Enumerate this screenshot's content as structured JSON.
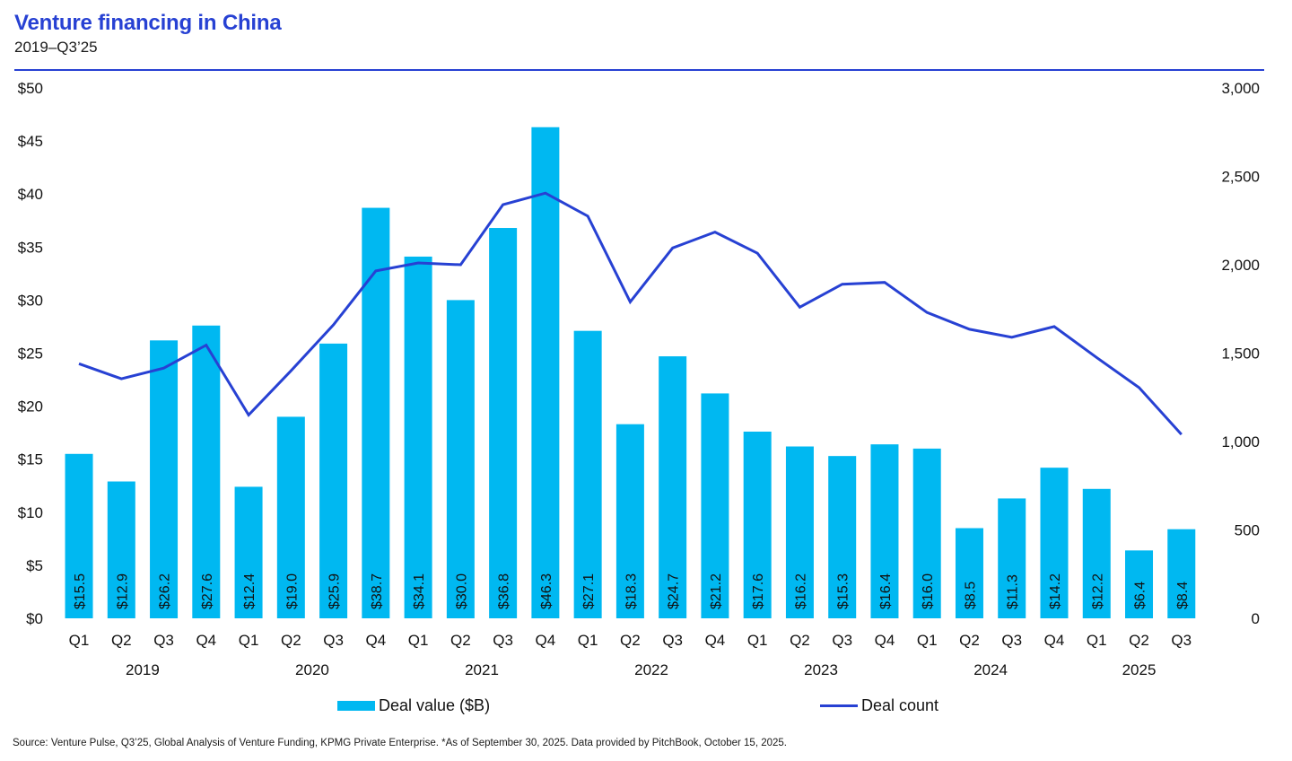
{
  "header": {
    "title": "Venture financing in China",
    "subtitle": "2019–Q3’25"
  },
  "legend": {
    "bar_label": "Deal value ($B)",
    "line_label": "Deal count"
  },
  "source": "Source: Venture Pulse, Q3’25, Global Analysis of Venture Funding, KPMG Private Enterprise. *As of September 30, 2025. Data provided by PitchBook, October 15, 2025.",
  "colors": {
    "bar": "#00b8f1",
    "line": "#2741d3",
    "title": "#2741d3"
  },
  "chart_data": {
    "type": "bar+line",
    "title": "Venture financing in China",
    "subtitle": "2019–Q3’25",
    "categories": [
      "Q1",
      "Q2",
      "Q3",
      "Q4",
      "Q1",
      "Q2",
      "Q3",
      "Q4",
      "Q1",
      "Q2",
      "Q3",
      "Q4",
      "Q1",
      "Q2",
      "Q3",
      "Q4",
      "Q1",
      "Q2",
      "Q3",
      "Q4",
      "Q1",
      "Q2",
      "Q3",
      "Q4",
      "Q1",
      "Q2",
      "Q3"
    ],
    "year_groups": [
      {
        "label": "2019",
        "start": 0,
        "count": 4
      },
      {
        "label": "2020",
        "start": 4,
        "count": 4
      },
      {
        "label": "2021",
        "start": 8,
        "count": 4
      },
      {
        "label": "2022",
        "start": 12,
        "count": 4
      },
      {
        "label": "2023",
        "start": 16,
        "count": 4
      },
      {
        "label": "2024",
        "start": 20,
        "count": 4
      },
      {
        "label": "2025",
        "start": 24,
        "count": 3
      }
    ],
    "series": [
      {
        "name": "Deal value ($B)",
        "type": "bar",
        "axis": "left",
        "values": [
          15.5,
          12.9,
          26.2,
          27.6,
          12.4,
          19.0,
          25.9,
          38.7,
          34.1,
          30.0,
          36.8,
          46.3,
          27.1,
          18.3,
          24.7,
          21.2,
          17.6,
          16.2,
          15.3,
          16.4,
          16.0,
          8.5,
          11.3,
          14.2,
          12.2,
          6.4,
          8.4
        ],
        "labels": [
          "$15.5",
          "$12.9",
          "$26.2",
          "$27.6",
          "$12.4",
          "$19.0",
          "$25.9",
          "$38.7",
          "$34.1",
          "$30.0",
          "$36.8",
          "$46.3",
          "$27.1",
          "$18.3",
          "$24.7",
          "$21.2",
          "$17.6",
          "$16.2",
          "$15.3",
          "$16.4",
          "$16.0",
          "$8.5",
          "$11.3",
          "$14.2",
          "$12.2",
          "$6.4",
          "$8.4"
        ]
      },
      {
        "name": "Deal count",
        "type": "line",
        "axis": "right",
        "values": [
          1440,
          1355,
          1415,
          1545,
          1150,
          1400,
          1660,
          1965,
          2010,
          2000,
          2340,
          2405,
          2275,
          1790,
          2095,
          2185,
          2065,
          1760,
          1890,
          1900,
          1730,
          1635,
          1590,
          1650,
          1475,
          1305,
          1040
        ]
      }
    ],
    "left_axis": {
      "ylim": [
        0,
        50
      ],
      "ticks": [
        0,
        5,
        10,
        15,
        20,
        25,
        30,
        35,
        40,
        45,
        50
      ],
      "tick_labels": [
        "$0",
        "$5",
        "$10",
        "$15",
        "$20",
        "$25",
        "$30",
        "$35",
        "$40",
        "$45",
        "$50"
      ]
    },
    "right_axis": {
      "ylim": [
        0,
        3000
      ],
      "ticks": [
        0,
        500,
        1000,
        1500,
        2000,
        2500,
        3000
      ],
      "tick_labels": [
        "0",
        "500",
        "1,000",
        "1,500",
        "2,000",
        "2,500",
        "3,000"
      ]
    },
    "grid": false,
    "legend_position": "bottom"
  }
}
